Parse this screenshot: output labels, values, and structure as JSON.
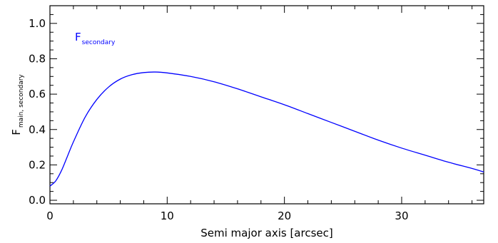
{
  "chart_data": {
    "type": "line",
    "xlabel": "Semi major axis [arcsec]",
    "ylabel": {
      "main": "F",
      "sub": "main, secondary"
    },
    "xlim": [
      0,
      37
    ],
    "ylim": [
      -0.02,
      1.1
    ],
    "x_ticks": [
      0,
      10,
      20,
      30
    ],
    "x_tick_labels": [
      "0",
      "10",
      "20",
      "30"
    ],
    "y_ticks": [
      0.0,
      0.2,
      0.4,
      0.6,
      0.8,
      1.0
    ],
    "y_tick_labels": [
      "0.0",
      "0.2",
      "0.4",
      "0.6",
      "0.8",
      "1.0"
    ],
    "grid": false,
    "legend_placement": "top-left",
    "series": [
      {
        "name": {
          "main": "F",
          "sub": "secondary"
        },
        "color": "#0000ff",
        "x": [
          0,
          0.5,
          1,
          1.5,
          2,
          3,
          4,
          5,
          6,
          7,
          8,
          9,
          10,
          12,
          14,
          16,
          18,
          20,
          22,
          24,
          26,
          28,
          30,
          32,
          34,
          36,
          37
        ],
        "y": [
          0.08,
          0.11,
          0.17,
          0.25,
          0.33,
          0.47,
          0.57,
          0.64,
          0.685,
          0.71,
          0.722,
          0.725,
          0.72,
          0.7,
          0.67,
          0.63,
          0.585,
          0.54,
          0.49,
          0.44,
          0.39,
          0.34,
          0.295,
          0.255,
          0.215,
          0.18,
          0.16
        ]
      }
    ]
  }
}
